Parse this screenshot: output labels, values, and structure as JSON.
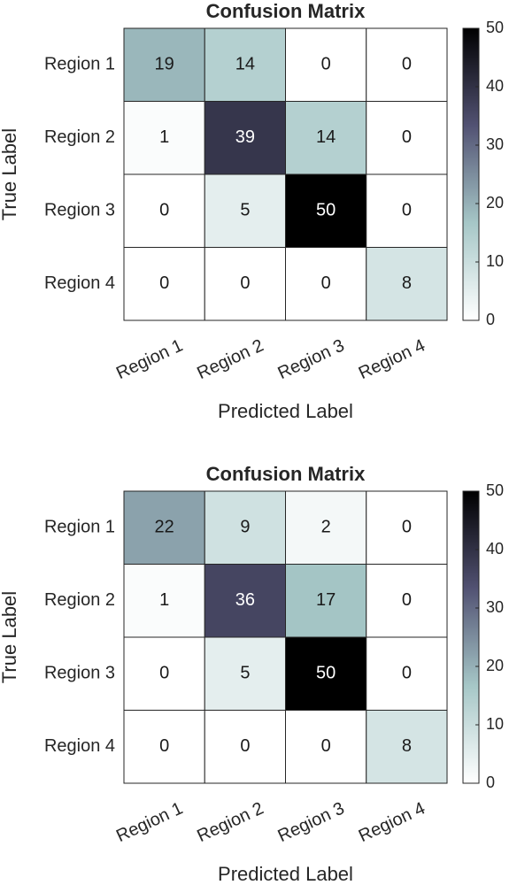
{
  "chart_data": [
    {
      "type": "heatmap",
      "title": "Confusion Matrix",
      "x_label": "Predicted Label",
      "y_label": "True Label",
      "x_categories": [
        "Region 1",
        "Region 2",
        "Region 3",
        "Region 4"
      ],
      "y_categories": [
        "Region 1",
        "Region 2",
        "Region 3",
        "Region 4"
      ],
      "values": [
        [
          19,
          14,
          0,
          0
        ],
        [
          1,
          39,
          14,
          0
        ],
        [
          0,
          5,
          50,
          0
        ],
        [
          0,
          0,
          0,
          8
        ]
      ],
      "colorbar_lim": [
        0,
        50
      ],
      "colorbar_ticks": [
        0,
        10,
        20,
        30,
        40,
        50
      ],
      "colormap": [
        "#ffffff",
        "#a6c7c7",
        "#525273",
        "#000000"
      ]
    },
    {
      "type": "heatmap",
      "title": "Confusion Matrix",
      "x_label": "Predicted Label",
      "y_label": "True Label",
      "x_categories": [
        "Region 1",
        "Region 2",
        "Region 3",
        "Region 4"
      ],
      "y_categories": [
        "Region 1",
        "Region 2",
        "Region 3",
        "Region 4"
      ],
      "values": [
        [
          22,
          9,
          2,
          0
        ],
        [
          1,
          36,
          17,
          0
        ],
        [
          0,
          5,
          50,
          0
        ],
        [
          0,
          0,
          0,
          8
        ]
      ],
      "colorbar_lim": [
        0,
        50
      ],
      "colorbar_ticks": [
        0,
        10,
        20,
        30,
        40,
        50
      ],
      "colormap": [
        "#ffffff",
        "#a6c7c7",
        "#525273",
        "#000000"
      ]
    }
  ]
}
